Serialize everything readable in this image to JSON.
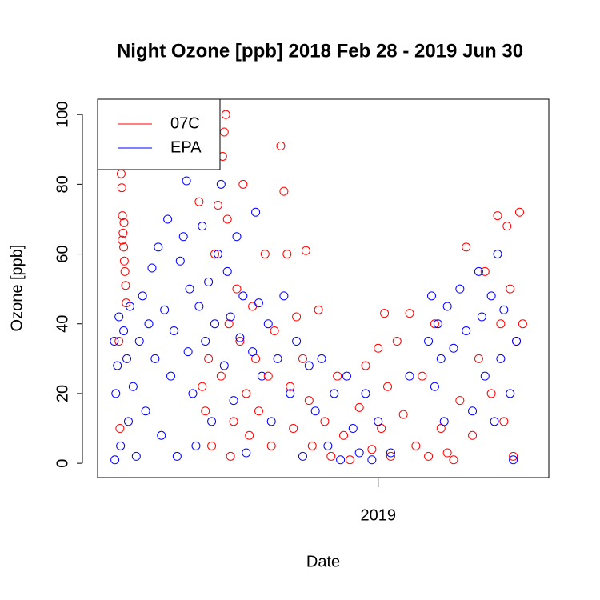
{
  "chart_data": {
    "type": "scatter",
    "title": "Night Ozone [ppb] 2018 Feb 28 - 2019 Jun 30",
    "x_label": "Date",
    "y_label": "Ozone [ppb]",
    "xlim": [
      2018.107,
      2019.543
    ],
    "xticks": [
      2019
    ],
    "ylim": [
      -4.1,
      104.4
    ],
    "yticks": [
      0,
      20,
      40,
      60,
      80,
      100
    ],
    "legend": "top-left",
    "series": [
      {
        "name": "07C",
        "color": "#ff0000",
        "x": [
          2018.18,
          2018.182,
          2018.184,
          2018.186,
          2018.188,
          2018.19,
          2018.192,
          2018.194,
          2018.196,
          2018.198,
          2018.185,
          2018.191,
          2018.175,
          2018.178,
          2018.43,
          2018.44,
          2018.45,
          2018.46,
          2018.47,
          2018.48,
          2018.49,
          2018.5,
          2018.505,
          2018.51,
          2018.515,
          2018.52,
          2018.525,
          2018.53,
          2018.54,
          2018.55,
          2018.56,
          2018.57,
          2018.58,
          2018.59,
          2018.6,
          2018.61,
          2018.62,
          2018.64,
          2018.65,
          2018.66,
          2018.67,
          2018.69,
          2018.7,
          2018.71,
          2018.72,
          2018.73,
          2018.74,
          2018.76,
          2018.77,
          2018.78,
          2018.79,
          2018.81,
          2018.83,
          2018.85,
          2018.87,
          2018.89,
          2018.91,
          2018.94,
          2018.96,
          2018.98,
          2019.0,
          2019.01,
          2019.02,
          2019.03,
          2019.04,
          2019.06,
          2019.08,
          2019.1,
          2019.12,
          2019.14,
          2019.16,
          2019.18,
          2019.2,
          2019.22,
          2019.24,
          2019.26,
          2019.28,
          2019.3,
          2019.32,
          2019.34,
          2019.36,
          2019.38,
          2019.39,
          2019.4,
          2019.41,
          2019.42,
          2019.43,
          2019.44,
          2019.45,
          2019.46
        ],
        "values": [
          88,
          83,
          79,
          71,
          66,
          62,
          58,
          55,
          51,
          46,
          64,
          69,
          35,
          10,
          75,
          22,
          15,
          30,
          5,
          60,
          74,
          25,
          88,
          95,
          100,
          70,
          40,
          2,
          12,
          50,
          35,
          80,
          20,
          8,
          45,
          30,
          15,
          60,
          25,
          5,
          38,
          91,
          78,
          60,
          22,
          10,
          42,
          30,
          61,
          18,
          5,
          44,
          12,
          2,
          25,
          8,
          1,
          16,
          28,
          4,
          33,
          10,
          43,
          22,
          2,
          35,
          14,
          43,
          5,
          25,
          2,
          40,
          10,
          3,
          1,
          18,
          62,
          8,
          30,
          55,
          20,
          71,
          40,
          12,
          68,
          50,
          2,
          35,
          72,
          40
        ]
      },
      {
        "name": "EPA",
        "color": "#0000ff",
        "x": [
          2018.16,
          2018.162,
          2018.165,
          2018.17,
          2018.175,
          2018.18,
          2018.19,
          2018.2,
          2018.205,
          2018.21,
          2018.22,
          2018.23,
          2018.24,
          2018.25,
          2018.26,
          2018.27,
          2018.28,
          2018.29,
          2018.3,
          2018.31,
          2018.32,
          2018.33,
          2018.34,
          2018.35,
          2018.36,
          2018.37,
          2018.38,
          2018.39,
          2018.395,
          2018.4,
          2018.41,
          2018.42,
          2018.43,
          2018.44,
          2018.45,
          2018.46,
          2018.47,
          2018.48,
          2018.49,
          2018.5,
          2018.51,
          2018.52,
          2018.53,
          2018.54,
          2018.55,
          2018.56,
          2018.57,
          2018.58,
          2018.6,
          2018.61,
          2018.62,
          2018.63,
          2018.65,
          2018.66,
          2018.68,
          2018.7,
          2018.72,
          2018.74,
          2018.76,
          2018.78,
          2018.8,
          2018.82,
          2018.84,
          2018.86,
          2018.88,
          2018.9,
          2018.92,
          2018.94,
          2018.96,
          2018.98,
          2019.0,
          2019.04,
          2019.1,
          2019.16,
          2019.17,
          2019.18,
          2019.19,
          2019.2,
          2019.21,
          2019.22,
          2019.24,
          2019.26,
          2019.28,
          2019.3,
          2019.32,
          2019.33,
          2019.34,
          2019.36,
          2019.37,
          2019.38,
          2019.39,
          2019.4,
          2019.42,
          2019.43,
          2019.44
        ],
        "values": [
          35,
          1,
          20,
          28,
          42,
          5,
          38,
          30,
          12,
          45,
          22,
          2,
          35,
          48,
          15,
          40,
          56,
          30,
          62,
          8,
          44,
          70,
          25,
          38,
          2,
          58,
          65,
          81,
          32,
          50,
          20,
          5,
          45,
          68,
          35,
          52,
          12,
          40,
          60,
          80,
          28,
          55,
          42,
          18,
          65,
          36,
          48,
          3,
          32,
          72,
          46,
          25,
          40,
          12,
          30,
          48,
          20,
          35,
          2,
          28,
          15,
          30,
          5,
          20,
          1,
          25,
          10,
          3,
          20,
          1,
          12,
          3,
          25,
          35,
          48,
          22,
          40,
          30,
          12,
          45,
          33,
          50,
          38,
          15,
          55,
          42,
          25,
          48,
          12,
          60,
          30,
          44,
          20,
          1,
          35
        ]
      }
    ]
  }
}
